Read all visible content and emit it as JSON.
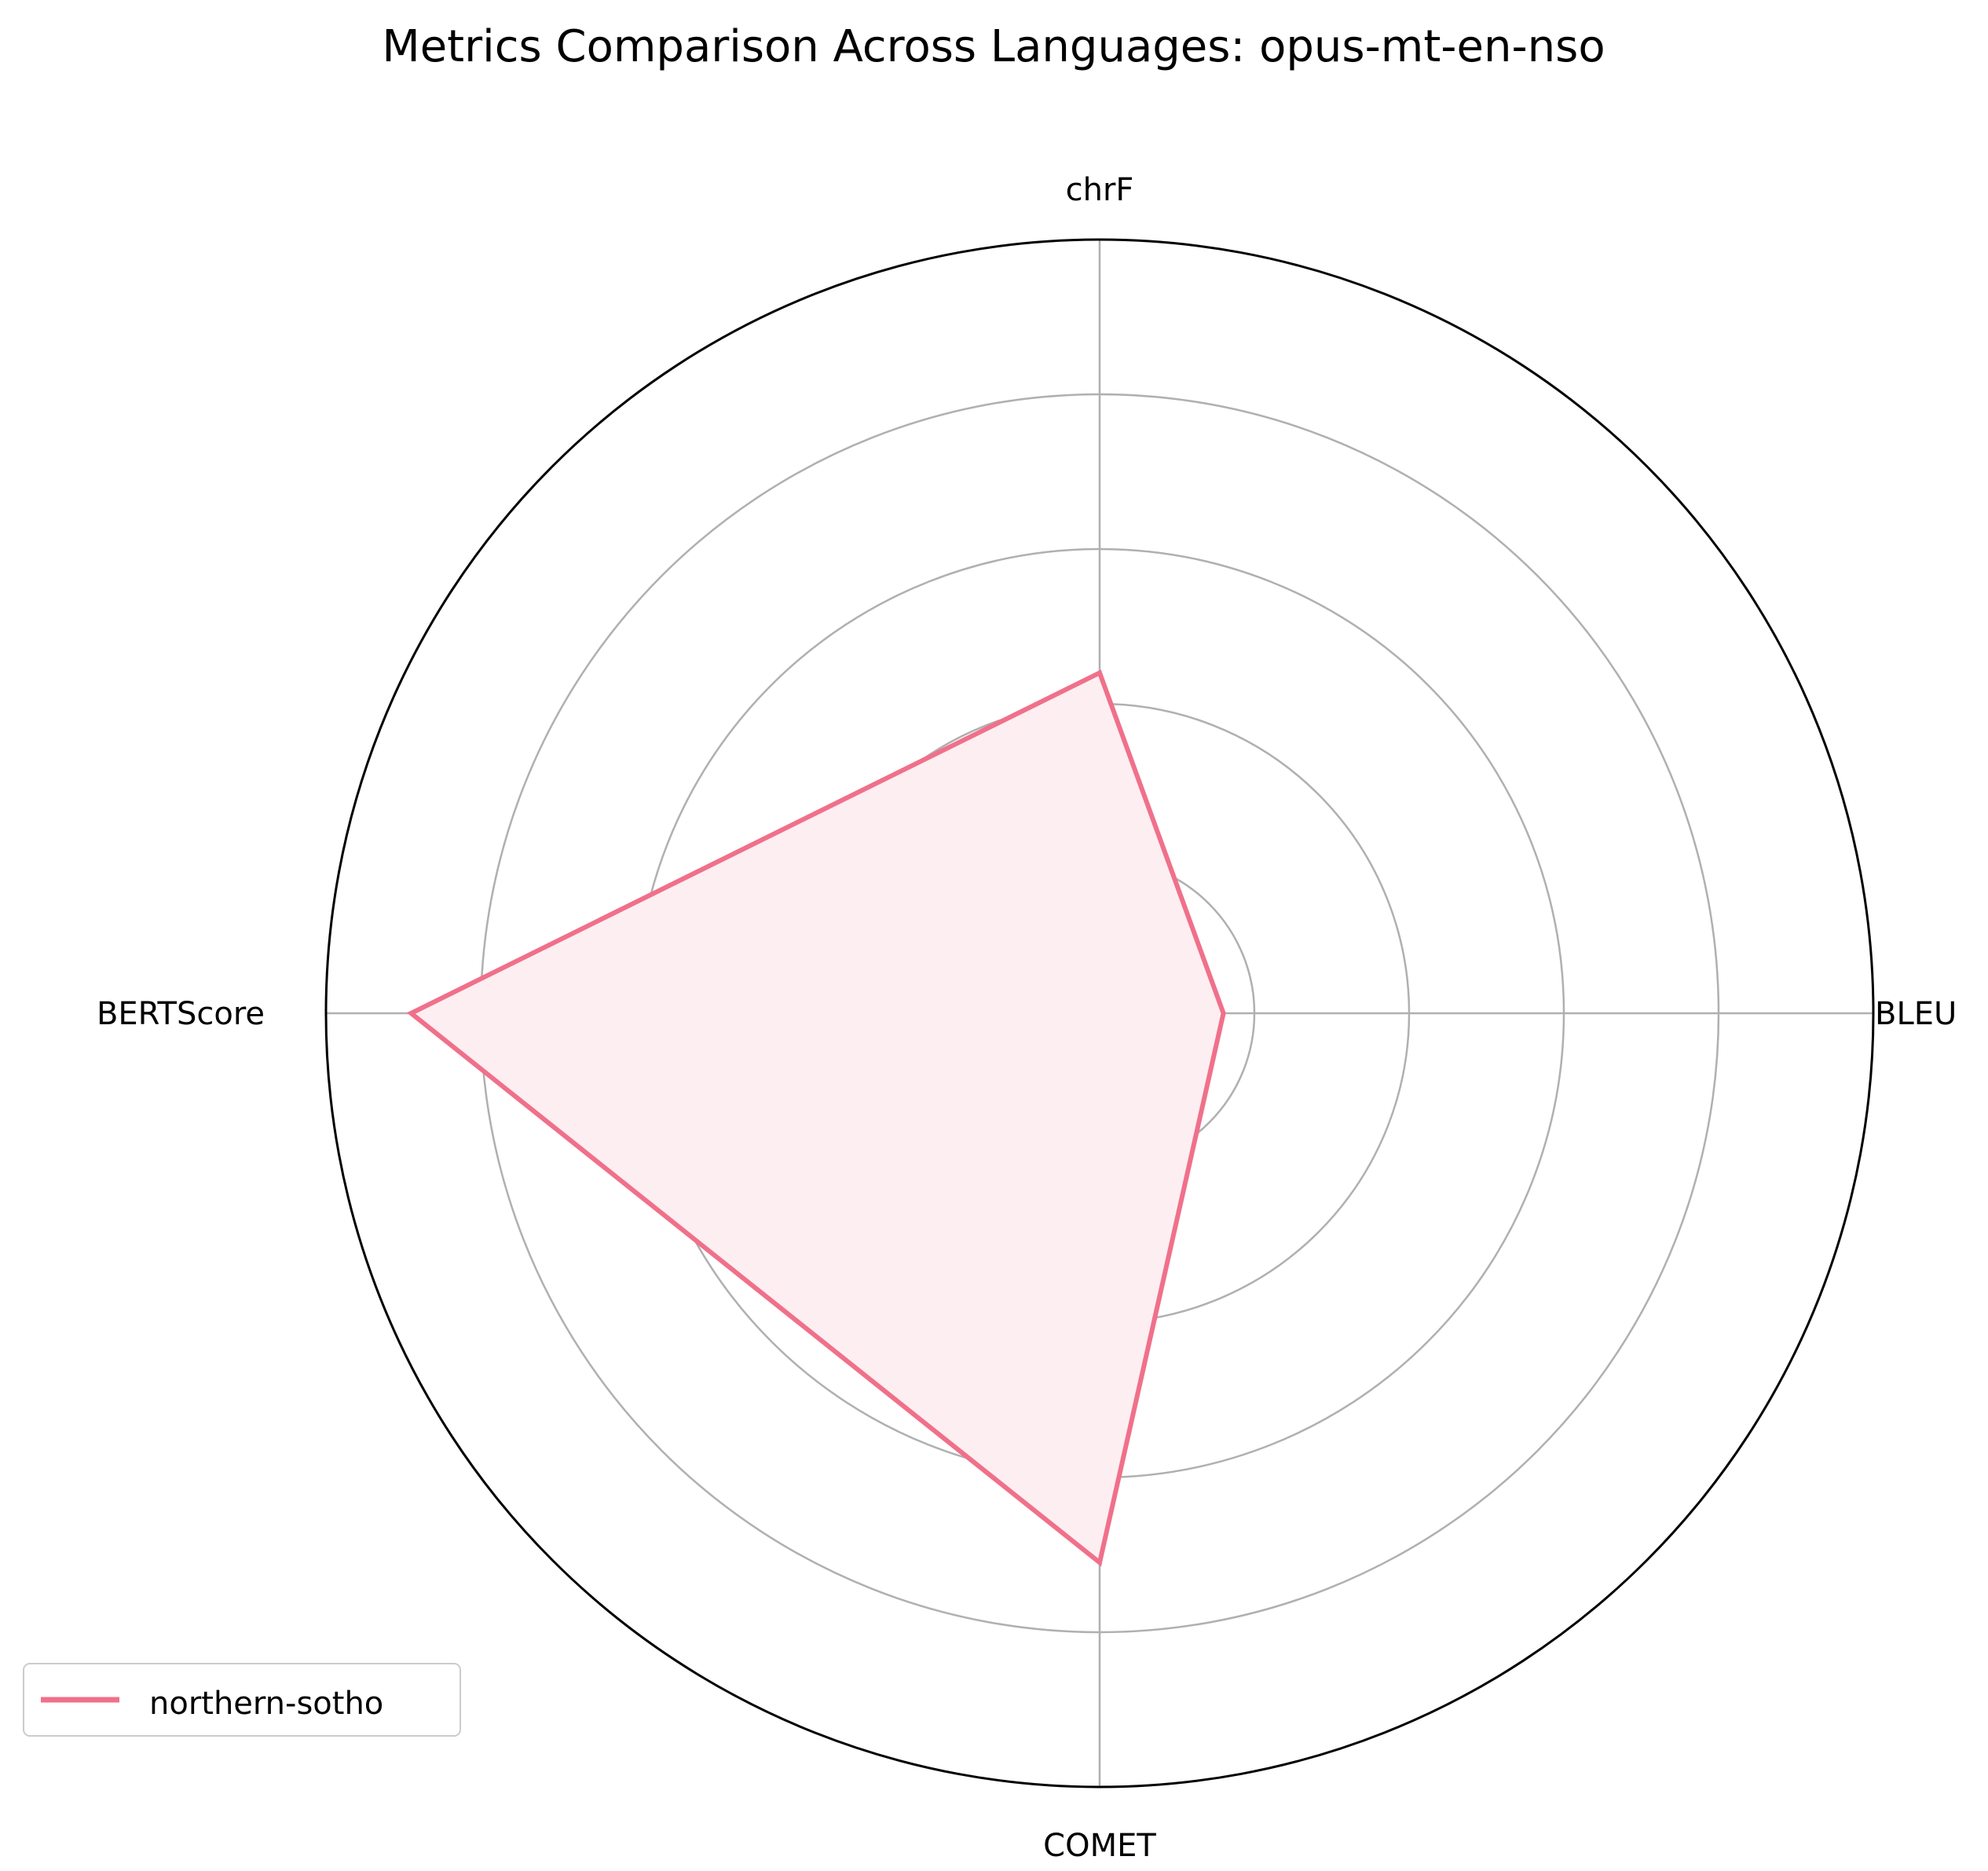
{
  "chart_data": {
    "type": "radar",
    "title": "Metrics Comparison Across Languages: opus-mt-en-nso",
    "axes": [
      "BLEU",
      "chrF",
      "BERTScore",
      "COMET"
    ],
    "rlim": [
      0,
      1
    ],
    "rings": [
      0.2,
      0.4,
      0.6,
      0.8,
      1.0
    ],
    "grid": true,
    "legend_position": "lower-left",
    "series": [
      {
        "name": "northern-sotho",
        "color": "#f0708a",
        "fill_color": "#fdeef2",
        "values": [
          0.16,
          0.44,
          0.89,
          0.71
        ]
      }
    ]
  }
}
